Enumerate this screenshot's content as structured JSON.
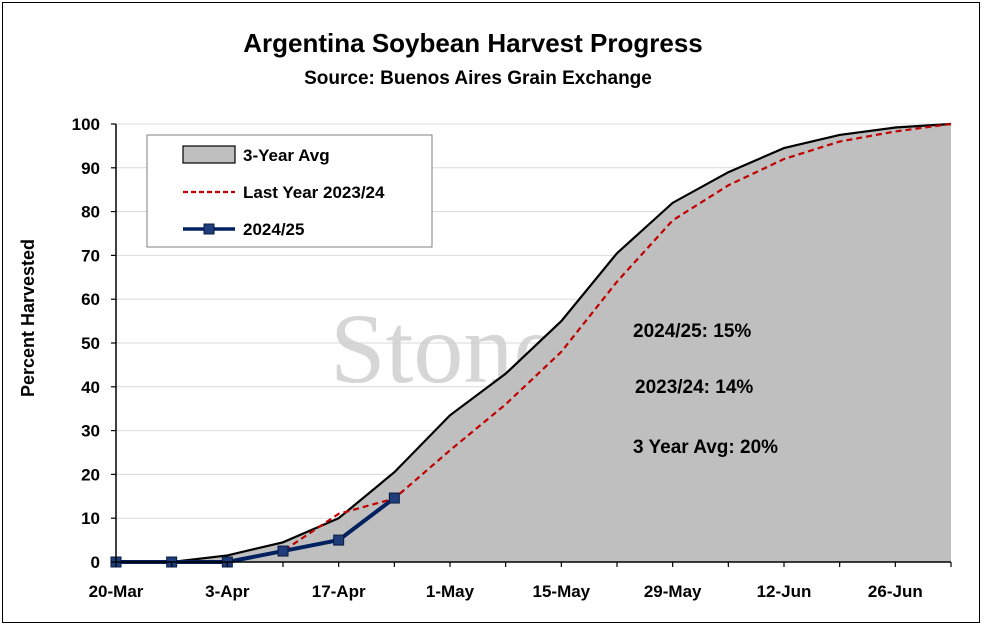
{
  "chart_data": {
    "type": "area",
    "title": "Argentina Soybean Harvest Progress",
    "subtitle": "Source: Buenos Aires Grain Exchange",
    "xlabel": "",
    "ylabel": "Percent Harvested",
    "ylim": [
      0,
      100
    ],
    "yticks": [
      0,
      10,
      20,
      30,
      40,
      50,
      60,
      70,
      80,
      90,
      100
    ],
    "x_tick_labels": [
      "20-Mar",
      "3-Apr",
      "17-Apr",
      "1-May",
      "15-May",
      "29-May",
      "12-Jun",
      "26-Jun"
    ],
    "x_tick_dates": [
      "2025-03-20",
      "2025-04-03",
      "2025-04-17",
      "2025-05-01",
      "2025-05-15",
      "2025-05-29",
      "2025-06-12",
      "2025-06-26"
    ],
    "xlim": [
      "2025-03-20",
      "2025-07-03"
    ],
    "grid": "horizontal",
    "legend_position": "top-left",
    "series": [
      {
        "name": "3-Year Avg",
        "style": "area",
        "color": "#bfbfbf",
        "line_color": "#000000",
        "x": [
          "2025-03-20",
          "2025-03-27",
          "2025-04-03",
          "2025-04-10",
          "2025-04-17",
          "2025-04-24",
          "2025-05-01",
          "2025-05-08",
          "2025-05-15",
          "2025-05-22",
          "2025-05-29",
          "2025-06-05",
          "2025-06-12",
          "2025-06-19",
          "2025-06-26",
          "2025-07-03"
        ],
        "values": [
          0,
          0,
          1.5,
          4.5,
          10,
          20.5,
          33.5,
          43,
          55,
          70.5,
          82,
          89,
          94.5,
          97.5,
          99.2,
          100
        ]
      },
      {
        "name": "Last Year 2023/24",
        "style": "dashed-line",
        "color": "#c00000",
        "x": [
          "2025-03-20",
          "2025-03-27",
          "2025-04-03",
          "2025-04-10",
          "2025-04-17",
          "2025-04-24",
          "2025-05-01",
          "2025-05-08",
          "2025-05-15",
          "2025-05-22",
          "2025-05-29",
          "2025-06-05",
          "2025-06-12",
          "2025-06-19",
          "2025-06-26",
          "2025-07-03"
        ],
        "values": [
          0,
          0,
          0,
          2.5,
          11,
          14.5,
          25.5,
          36,
          48,
          64,
          78,
          86,
          92,
          96,
          98.3,
          100
        ]
      },
      {
        "name": "2024/25",
        "style": "line-markers",
        "color": "#002060",
        "marker_color": "#1f3d7a",
        "x": [
          "2025-03-20",
          "2025-03-27",
          "2025-04-03",
          "2025-04-10",
          "2025-04-17",
          "2025-04-24"
        ],
        "values": [
          0,
          0,
          0,
          2.5,
          5,
          14.6
        ]
      }
    ],
    "annotations": [
      "2024/25: 15%",
      "2023/24: 14%",
      "3 Year Avg: 20%"
    ],
    "watermark": "StoneX"
  }
}
